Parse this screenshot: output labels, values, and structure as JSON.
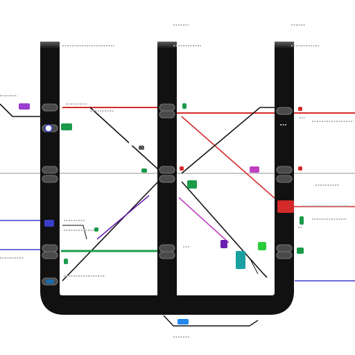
{
  "diagram": {
    "description_free": true,
    "colors": {
      "frame": "#111111",
      "red": "#d42a2a",
      "purple": "#6a1fb0",
      "blue": "#3a3fc8",
      "green": "#1a9a4a",
      "gray_line": "#9a9a9a",
      "magenta": "#c040c0",
      "teal": "#1aa0a0",
      "label_gray": "#b0b0b8"
    },
    "lines": [
      {
        "id": "red-line",
        "color": "red"
      },
      {
        "id": "gray-line",
        "color": "gray_line"
      },
      {
        "id": "purple-line",
        "color": "purple"
      },
      {
        "id": "green-line",
        "color": "green"
      },
      {
        "id": "blue-line",
        "color": "blue"
      },
      {
        "id": "magenta-line",
        "color": "magenta"
      },
      {
        "id": "black-connector",
        "color": "frame"
      }
    ],
    "station_count": 15,
    "badge_count": 14
  }
}
